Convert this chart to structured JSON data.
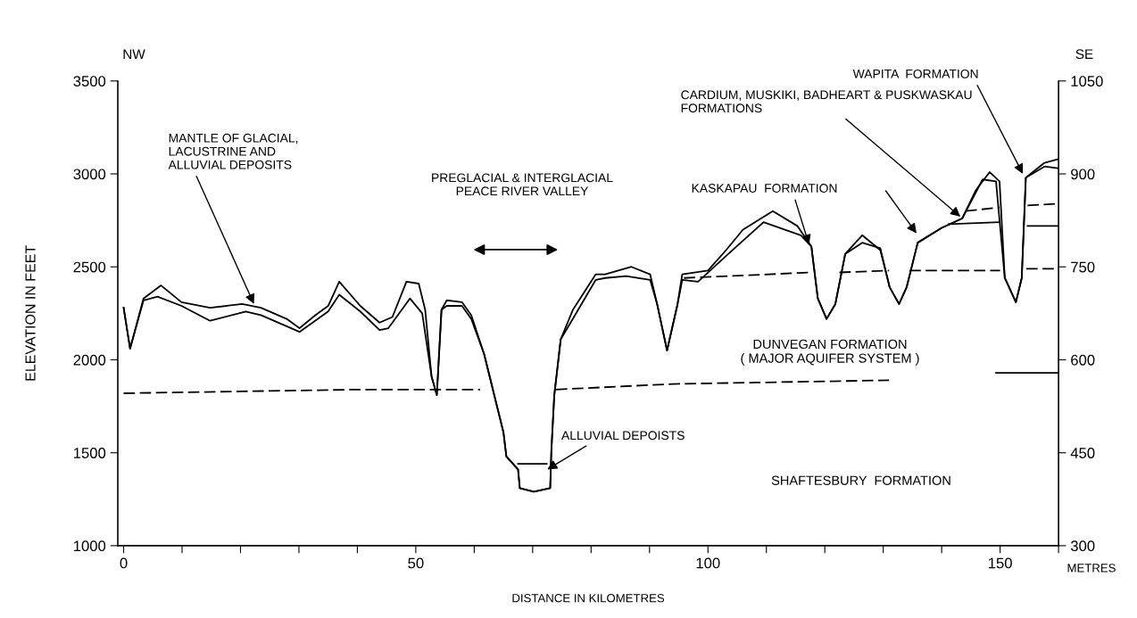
{
  "chart_data": {
    "type": "line",
    "xlabel": "DISTANCE IN KILOMETRES",
    "ylabel": "ELEVATION IN FEET",
    "y2label": "METRES",
    "xlim": [
      -1,
      160
    ],
    "ylim": [
      1000,
      3500
    ],
    "y2lim": [
      300,
      1050
    ],
    "xticks": [
      0,
      {
        "value": 10,
        "label": null
      },
      {
        "value": 20,
        "label": null
      },
      {
        "value": 30,
        "label": null
      },
      {
        "value": 40,
        "label": null
      },
      50,
      {
        "value": 60,
        "label": null
      },
      {
        "value": 70,
        "label": null
      },
      {
        "value": 80,
        "label": null
      },
      {
        "value": 90,
        "label": null
      },
      100,
      {
        "value": 110,
        "label": null
      },
      {
        "value": 120,
        "label": null
      },
      {
        "value": 130,
        "label": null
      },
      {
        "value": 140,
        "label": null
      },
      150,
      {
        "value": 160,
        "label": null
      }
    ],
    "yticks": [
      1000,
      1500,
      2000,
      2500,
      3000,
      3500
    ],
    "y2ticks": [
      300,
      450,
      600,
      750,
      900,
      1050
    ],
    "grid": false,
    "legend": false,
    "marker": "none",
    "series": [
      {
        "color": "#000000",
        "line_style": "solid",
        "x": [
          0,
          1.1,
          3.4,
          6.4,
          9.9,
          14.8,
          20.3,
          23.5,
          27.9,
          30.1,
          32.8,
          35.0,
          36.9,
          40.5,
          43.8,
          46.0,
          48.4,
          50.5,
          51.6,
          52.7,
          53.6,
          54.4,
          55.3,
          57.9,
          59.5,
          61.7,
          65.0,
          65.5,
          67.5,
          67.8,
          70.2,
          73.0,
          73.2,
          73.7,
          74.8,
          76.9,
          80.8,
          82.4,
          86.9,
          90.1,
          91.3,
          93.0,
          94.8,
          95.6,
          100.0,
          103.1,
          106.0,
          111.1,
          115.3,
          117.7,
          118.8,
          120.3,
          121.8,
          123.5,
          126.4,
          129.5,
          131.1,
          132.7,
          134.0,
          135.9,
          140.0,
          143.5,
          145.8,
          148.2,
          149.9,
          150.8,
          152.7,
          153.7,
          154.4,
          157.6,
          160
        ],
        "values": [
          2280,
          2060,
          2330,
          2400,
          2310,
          2280,
          2300,
          2280,
          2220,
          2170,
          2240,
          2290,
          2420,
          2290,
          2200,
          2230,
          2420,
          2410,
          2270,
          1910,
          1810,
          2270,
          2320,
          2310,
          2240,
          2030,
          1610,
          1480,
          1410,
          1310,
          1290,
          1310,
          1510,
          1810,
          2110,
          2270,
          2460,
          2460,
          2500,
          2460,
          2300,
          2050,
          2300,
          2460,
          2480,
          2590,
          2700,
          2800,
          2720,
          2610,
          2330,
          2220,
          2300,
          2570,
          2670,
          2590,
          2390,
          2300,
          2390,
          2630,
          2710,
          2760,
          2910,
          3010,
          2960,
          2440,
          2310,
          2440,
          2980,
          3060,
          3080
        ]
      },
      {
        "color": "#000000",
        "line_style": "solid",
        "x": [
          0,
          1.1,
          3.4,
          5.8,
          9.9,
          14.8,
          20.9,
          23.5,
          30.1,
          35.0,
          36.9,
          40.5,
          43.8,
          45.3,
          49.0,
          51.1,
          52.7,
          53.6,
          54.4,
          55.3,
          57.9,
          59.5,
          61.7,
          65.0,
          65.5,
          67.5,
          67.8,
          70.2,
          73.0,
          73.2,
          73.7,
          74.8,
          76.5,
          80.8,
          82.4,
          86.0,
          90.1,
          91.3,
          93.0,
          94.8,
          95.6,
          98.3,
          103.5,
          109.5,
          115.9,
          117.7,
          118.8,
          120.3,
          121.8,
          123.5,
          126.4,
          129.5,
          131.1,
          132.7,
          134.0,
          135.9,
          140.0,
          143.5,
          147.0,
          149.3,
          150.8,
          152.7,
          153.7,
          154.4,
          157.6,
          160
        ],
        "values": [
          2280,
          2060,
          2320,
          2340,
          2290,
          2210,
          2260,
          2240,
          2150,
          2260,
          2350,
          2260,
          2160,
          2170,
          2330,
          2250,
          1910,
          1810,
          2270,
          2290,
          2290,
          2220,
          2030,
          1610,
          1480,
          1410,
          1310,
          1290,
          1310,
          1510,
          1810,
          2110,
          2200,
          2430,
          2440,
          2450,
          2430,
          2300,
          2050,
          2300,
          2430,
          2420,
          2570,
          2740,
          2670,
          2610,
          2330,
          2220,
          2300,
          2570,
          2630,
          2600,
          2390,
          2300,
          2390,
          2630,
          2710,
          2760,
          2970,
          2960,
          2440,
          2310,
          2440,
          2980,
          3040,
          3030
        ]
      },
      {
        "color": "#000000",
        "line_style": "solid",
        "x": [
          67.5,
          72.4
        ],
        "values": [
          1440,
          1440
        ]
      },
      {
        "color": "#000000",
        "line_style": "dashed",
        "x": [
          0,
          20,
          40,
          61,
          67,
          74,
          94,
          131
        ],
        "values": [
          1820,
          1830,
          1840,
          1840,
          null,
          1840,
          1870,
          1890
        ]
      },
      {
        "color": "#000000",
        "line_style": "solid",
        "x": [
          149.3,
          160
        ],
        "values": [
          1930,
          1930
        ]
      },
      {
        "color": "#000000",
        "line_style": "dashed",
        "x": [
          95.9,
          117.7,
          120.3,
          122.5,
          131,
          132.7,
          134.5,
          150,
          152.7,
          154.5,
          160
        ],
        "values": [
          2440,
          2470,
          null,
          2470,
          2480,
          null,
          2480,
          2480,
          null,
          2490,
          2490
        ]
      },
      {
        "color": "#000000",
        "line_style": "dashed",
        "x": [
          144.1,
          149.9,
          152.7,
          154.7,
          160
        ],
        "values": [
          2800,
          2820,
          null,
          2830,
          2840
        ]
      },
      {
        "color": "#000000",
        "line_style": "solid",
        "x": [
          141.2,
          149.9,
          152.7,
          154.7,
          160
        ],
        "values": [
          2730,
          2740,
          null,
          2720,
          2720
        ]
      }
    ],
    "annotations": [
      "NW",
      "SE",
      {
        "text": "MANTLE OF GLACIAL,\nLACUSTRINE AND\nALLUVIAL DEPOSITS",
        "x": 22.3,
        "y": 2300
      },
      "PREGLACIAL & INTERGLACIAL\nPEACE RIVER VALLEY",
      {
        "text": "ALLUVIAL DEPOISTS",
        "x": 72.5,
        "y": 1410
      },
      {
        "text": "KASKAPAU  FORMATION",
        "x": 117.3,
        "y": 2620
      },
      {
        "text": "CARDIUM, MUSKIKI, BADHEART & PUSKWASKAU\nFORMATIONS",
        "x": 143.2,
        "y": 2770
      },
      {
        "text": "WAPITA  FORMATION",
        "x": 153.9,
        "y": 3000
      },
      "DUNVEGAN FORMATION\n( MAJOR AQUIFER SYSTEM )",
      "SHAFTESBURY  FORMATION"
    ]
  }
}
